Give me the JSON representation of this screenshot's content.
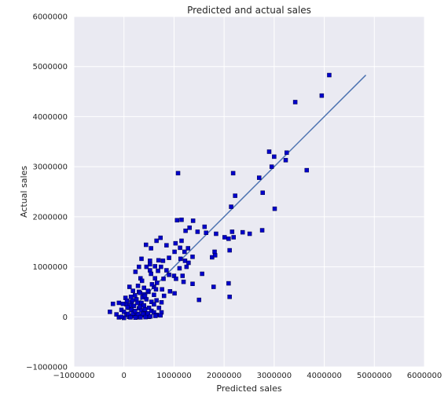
{
  "chart_data": {
    "type": "scatter",
    "title": "Predicted and actual sales",
    "xlabel": "Predicted sales",
    "ylabel": "Actual sales",
    "xlim": [
      -1000000,
      6000000
    ],
    "ylim": [
      -1000000,
      6000000
    ],
    "xticks": [
      "−1000000",
      "0",
      "1000000",
      "2000000",
      "3000000",
      "4000000",
      "5000000",
      "6000000"
    ],
    "yticks": [
      "−1000000",
      "0",
      "1000000",
      "2000000",
      "3000000",
      "4000000",
      "5000000",
      "6000000"
    ],
    "xtick_values": [
      -1000000,
      0,
      1000000,
      2000000,
      3000000,
      4000000,
      5000000,
      6000000
    ],
    "ytick_values": [
      -1000000,
      0,
      1000000,
      2000000,
      3000000,
      4000000,
      5000000,
      6000000
    ],
    "grid": true,
    "background_color": "#eaeaf2",
    "point_color": "#0000cc",
    "line_color": "#4c72b0",
    "fit_line": {
      "x": [
        0,
        4830000
      ],
      "y": [
        0,
        4830000
      ]
    },
    "points": [
      [
        4100000,
        4830000
      ],
      [
        3950000,
        4420000
      ],
      [
        3420000,
        4290000
      ],
      [
        2900000,
        3300000
      ],
      [
        3000000,
        3200000
      ],
      [
        3250000,
        3280000
      ],
      [
        3230000,
        3130000
      ],
      [
        2950000,
        3000000
      ],
      [
        3650000,
        2930000
      ],
      [
        2180000,
        2870000
      ],
      [
        1080000,
        2870000
      ],
      [
        2700000,
        2780000
      ],
      [
        2220000,
        2420000
      ],
      [
        2770000,
        2480000
      ],
      [
        2140000,
        2200000
      ],
      [
        3010000,
        2160000
      ],
      [
        1060000,
        1930000
      ],
      [
        1150000,
        1940000
      ],
      [
        1380000,
        1920000
      ],
      [
        1610000,
        1800000
      ],
      [
        1310000,
        1780000
      ],
      [
        1230000,
        1720000
      ],
      [
        1470000,
        1700000
      ],
      [
        1640000,
        1680000
      ],
      [
        2160000,
        1700000
      ],
      [
        2370000,
        1690000
      ],
      [
        2510000,
        1660000
      ],
      [
        2760000,
        1730000
      ],
      [
        1840000,
        1660000
      ],
      [
        2010000,
        1590000
      ],
      [
        2090000,
        1560000
      ],
      [
        2190000,
        1590000
      ],
      [
        730000,
        1580000
      ],
      [
        650000,
        1520000
      ],
      [
        1150000,
        1520000
      ],
      [
        1030000,
        1470000
      ],
      [
        440000,
        1440000
      ],
      [
        850000,
        1430000
      ],
      [
        1120000,
        1380000
      ],
      [
        540000,
        1370000
      ],
      [
        1280000,
        1370000
      ],
      [
        1010000,
        1300000
      ],
      [
        1210000,
        1300000
      ],
      [
        1810000,
        1300000
      ],
      [
        2110000,
        1330000
      ],
      [
        1760000,
        1190000
      ],
      [
        1820000,
        1230000
      ],
      [
        1370000,
        1200000
      ],
      [
        900000,
        1180000
      ],
      [
        1130000,
        1160000
      ],
      [
        1220000,
        1120000
      ],
      [
        1290000,
        1080000
      ],
      [
        520000,
        1120000
      ],
      [
        350000,
        1160000
      ],
      [
        690000,
        1130000
      ],
      [
        780000,
        1120000
      ],
      [
        520000,
        1050000
      ],
      [
        300000,
        1000000
      ],
      [
        450000,
        1000000
      ],
      [
        620000,
        1010000
      ],
      [
        740000,
        1000000
      ],
      [
        1250000,
        1000000
      ],
      [
        1110000,
        970000
      ],
      [
        520000,
        930000
      ],
      [
        680000,
        920000
      ],
      [
        850000,
        930000
      ],
      [
        230000,
        900000
      ],
      [
        540000,
        860000
      ],
      [
        900000,
        840000
      ],
      [
        1000000,
        820000
      ],
      [
        1170000,
        820000
      ],
      [
        1560000,
        860000
      ],
      [
        330000,
        770000
      ],
      [
        620000,
        770000
      ],
      [
        790000,
        760000
      ],
      [
        1040000,
        760000
      ],
      [
        1190000,
        700000
      ],
      [
        1370000,
        660000
      ],
      [
        2090000,
        670000
      ],
      [
        1790000,
        600000
      ],
      [
        110000,
        600000
      ],
      [
        600000,
        600000
      ],
      [
        400000,
        580000
      ],
      [
        640000,
        550000
      ],
      [
        760000,
        550000
      ],
      [
        180000,
        520000
      ],
      [
        300000,
        500000
      ],
      [
        490000,
        500000
      ],
      [
        920000,
        510000
      ],
      [
        1010000,
        470000
      ],
      [
        400000,
        450000
      ],
      [
        600000,
        440000
      ],
      [
        800000,
        420000
      ],
      [
        1500000,
        340000
      ],
      [
        2110000,
        400000
      ],
      [
        30000,
        380000
      ],
      [
        250000,
        350000
      ],
      [
        450000,
        350000
      ],
      [
        650000,
        330000
      ],
      [
        150000,
        300000
      ],
      [
        350000,
        280000
      ],
      [
        550000,
        300000
      ],
      [
        750000,
        290000
      ],
      [
        -100000,
        280000
      ],
      [
        -220000,
        260000
      ],
      [
        50000,
        250000
      ],
      [
        200000,
        220000
      ],
      [
        400000,
        230000
      ],
      [
        600000,
        250000
      ],
      [
        100000,
        180000
      ],
      [
        300000,
        170000
      ],
      [
        500000,
        180000
      ],
      [
        700000,
        180000
      ],
      [
        -50000,
        140000
      ],
      [
        150000,
        140000
      ],
      [
        350000,
        130000
      ],
      [
        550000,
        120000
      ],
      [
        -280000,
        100000
      ],
      [
        0,
        100000
      ],
      [
        200000,
        90000
      ],
      [
        400000,
        80000
      ],
      [
        600000,
        90000
      ],
      [
        750000,
        90000
      ],
      [
        -150000,
        50000
      ],
      [
        50000,
        40000
      ],
      [
        250000,
        50000
      ],
      [
        450000,
        40000
      ],
      [
        650000,
        40000
      ],
      [
        -100000,
        -10000
      ],
      [
        100000,
        0
      ],
      [
        300000,
        -5000
      ],
      [
        500000,
        0
      ],
      [
        150000,
        20000
      ],
      [
        350000,
        30000
      ],
      [
        250000,
        10000
      ],
      [
        80000,
        60000
      ],
      [
        180000,
        70000
      ],
      [
        280000,
        60000
      ],
      [
        380000,
        60000
      ],
      [
        480000,
        70000
      ],
      [
        220000,
        120000
      ],
      [
        320000,
        200000
      ],
      [
        420000,
        150000
      ],
      [
        120000,
        230000
      ],
      [
        0,
        -20000
      ],
      [
        -50000,
        0
      ],
      [
        130000,
        -10000
      ],
      [
        230000,
        -15000
      ],
      [
        330000,
        -10000
      ],
      [
        430000,
        -5000
      ],
      [
        530000,
        10000
      ],
      [
        630000,
        20000
      ],
      [
        730000,
        30000
      ],
      [
        70000,
        190000
      ],
      [
        270000,
        280000
      ],
      [
        170000,
        330000
      ],
      [
        370000,
        390000
      ],
      [
        220000,
        430000
      ],
      [
        320000,
        480000
      ],
      [
        -20000,
        260000
      ],
      [
        60000,
        320000
      ],
      [
        140000,
        400000
      ],
      [
        420000,
        420000
      ],
      [
        480000,
        520000
      ],
      [
        560000,
        650000
      ],
      [
        660000,
        680000
      ],
      [
        280000,
        620000
      ],
      [
        360000,
        720000
      ]
    ]
  }
}
